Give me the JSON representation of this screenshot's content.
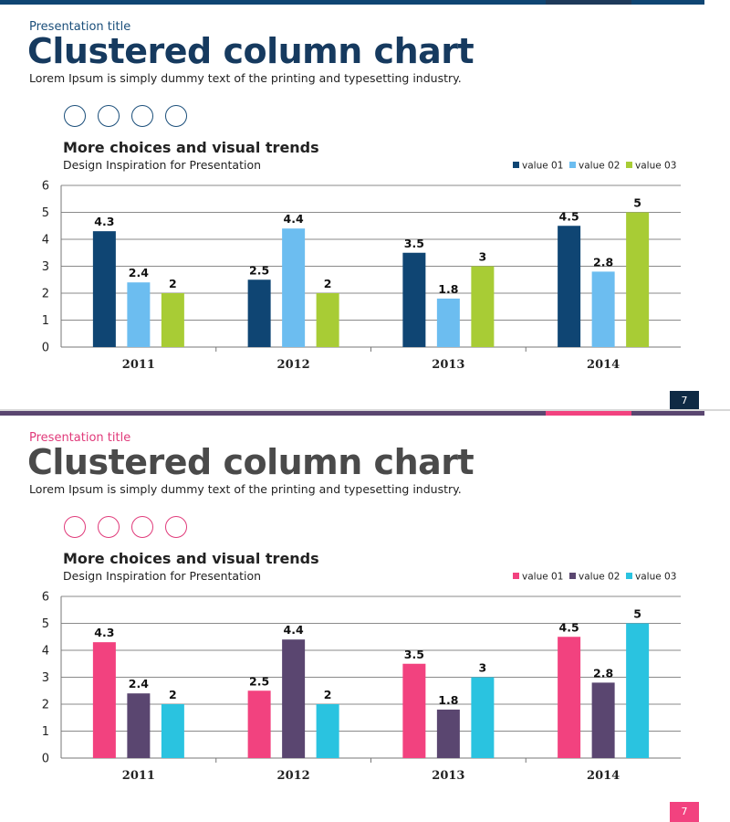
{
  "slides": [
    {
      "presentation_title": "Presentation title",
      "main_title": "Clustered column chart",
      "subtitle": "Lorem Ipsum is simply dummy text of the printing and typesetting industry.",
      "page_number": "7",
      "icons": [
        "syringe-icon",
        "heartbeat-icon",
        "stethoscope-icon",
        "medical-bag-icon"
      ],
      "colors": {
        "accent": "#1a4e7a",
        "title": "#163a5f",
        "series": [
          "#0f4573",
          "#6cbdf0",
          "#a8cc35"
        ],
        "page_box": "#0f2a44",
        "bar_segments": [
          "#0f4573",
          "#1e3a5a",
          "#0f4573"
        ]
      }
    },
    {
      "presentation_title": "Presentation title",
      "main_title": "Clustered column chart",
      "subtitle": "Lorem Ipsum is simply dummy text of the printing and typesetting industry.",
      "page_number": "7",
      "icons": [
        "syringe-icon",
        "heartbeat-icon",
        "stethoscope-icon",
        "medical-bag-icon"
      ],
      "colors": {
        "accent": "#e03a7a",
        "title": "#4a4a4a",
        "series": [
          "#f2427f",
          "#5a4670",
          "#2ac3e0"
        ],
        "page_box": "#f2427f",
        "bar_segments": [
          "#5a4670",
          "#f2427f",
          "#5a4670"
        ]
      }
    }
  ],
  "chart_data": {
    "type": "bar",
    "title": "More choices and visual trends",
    "subtitle": "Design Inspiration  for Presentation",
    "categories": [
      "2011",
      "2012",
      "2013",
      "2014"
    ],
    "series": [
      {
        "name": "value 01",
        "values": [
          4.3,
          2.5,
          3.5,
          4.5
        ]
      },
      {
        "name": "value 02",
        "values": [
          2.4,
          4.4,
          1.8,
          2.8
        ]
      },
      {
        "name": "value 03",
        "values": [
          2,
          2,
          3,
          5
        ]
      }
    ],
    "ylim": [
      0,
      6
    ],
    "yticks": [
      "0",
      "1",
      "2",
      "3",
      "4",
      "5",
      "6"
    ],
    "value_labels": [
      [
        "4.3",
        "2.5",
        "3.5",
        "4.5"
      ],
      [
        "2.4",
        "4.4",
        "1.8",
        "2.8"
      ],
      [
        "2",
        "2",
        "3",
        "5"
      ]
    ],
    "legend": "top-right",
    "grid": true
  }
}
